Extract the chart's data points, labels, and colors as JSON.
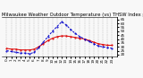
{
  "title": "Milwaukee Weather Outdoor Temperature (vs) THSW Index per Hour (Last 24 Hours)",
  "hours": [
    0,
    1,
    2,
    3,
    4,
    5,
    6,
    7,
    8,
    9,
    10,
    11,
    12,
    13,
    14,
    15,
    16,
    17,
    18,
    19,
    20,
    21,
    22,
    23
  ],
  "temp": [
    28,
    27,
    27,
    26,
    26,
    26,
    27,
    30,
    34,
    38,
    41,
    43,
    44,
    44,
    43,
    42,
    41,
    40,
    38,
    36,
    34,
    33,
    32,
    32
  ],
  "thsw": [
    25,
    24,
    23,
    22,
    22,
    21,
    23,
    29,
    36,
    43,
    50,
    56,
    62,
    58,
    52,
    47,
    43,
    40,
    37,
    34,
    31,
    30,
    29,
    28
  ],
  "temp_color": "#dd0000",
  "thsw_color": "#0000cc",
  "background": "#f8f8f8",
  "ylim": [
    18,
    68
  ],
  "yticks": [
    20,
    25,
    30,
    35,
    40,
    45,
    50,
    55,
    60,
    65
  ],
  "grid_color": "#bbbbbb",
  "title_fontsize": 3.8,
  "tick_fontsize": 3.0,
  "linewidth": 0.7,
  "markersize": 1.0
}
